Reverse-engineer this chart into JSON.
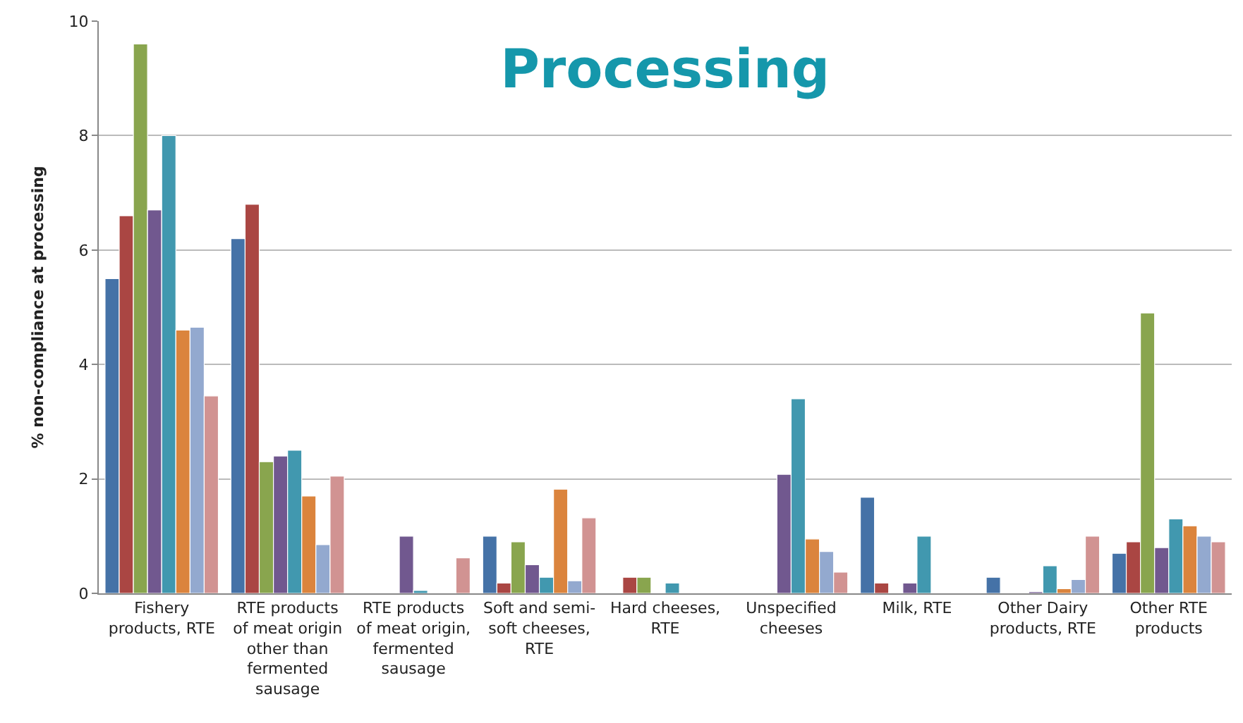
{
  "chart_data": {
    "type": "bar",
    "title": "Processing",
    "ylabel": "% non-compliance at processing",
    "categories": [
      "Fishery\nproducts, RTE",
      "RTE products\nof meat origin\nother than\nfermented\nsausage",
      "RTE products\nof meat origin,\nfermented\nsausage",
      "Soft and semi-\nsoft cheeses,\nRTE",
      "Hard cheeses,\nRTE",
      "Unspecified\ncheeses",
      "Milk, RTE",
      "Other Dairy\nproducts, RTE",
      "Other RTE\nproducts"
    ],
    "series": [
      {
        "color": "#4572a7",
        "values": [
          5.5,
          6.2,
          null,
          1.0,
          null,
          null,
          1.68,
          0.28,
          0.7
        ]
      },
      {
        "color": "#aa4643",
        "values": [
          6.6,
          6.8,
          null,
          0.18,
          0.28,
          null,
          0.18,
          null,
          0.9
        ]
      },
      {
        "color": "#89a54e",
        "values": [
          9.6,
          2.3,
          null,
          0.9,
          0.28,
          null,
          null,
          null,
          4.9
        ]
      },
      {
        "color": "#71588f",
        "values": [
          6.7,
          2.4,
          1.0,
          0.5,
          null,
          2.08,
          0.18,
          0.03,
          0.8
        ]
      },
      {
        "color": "#4198af",
        "values": [
          8.0,
          2.5,
          0.05,
          0.28,
          0.18,
          3.4,
          1.0,
          0.48,
          1.3
        ]
      },
      {
        "color": "#db843d",
        "values": [
          4.6,
          1.7,
          null,
          1.82,
          null,
          0.95,
          null,
          0.08,
          1.18
        ]
      },
      {
        "color": "#93a9cf",
        "values": [
          4.65,
          0.85,
          null,
          0.22,
          null,
          0.73,
          null,
          0.24,
          1.0
        ]
      },
      {
        "color": "#d19392",
        "values": [
          3.45,
          2.05,
          0.62,
          1.32,
          null,
          0.37,
          null,
          1.0,
          0.9
        ]
      }
    ],
    "ylim": [
      0,
      10
    ],
    "yticks": [
      0,
      2,
      4,
      6,
      8,
      10
    ],
    "grid": "y"
  }
}
